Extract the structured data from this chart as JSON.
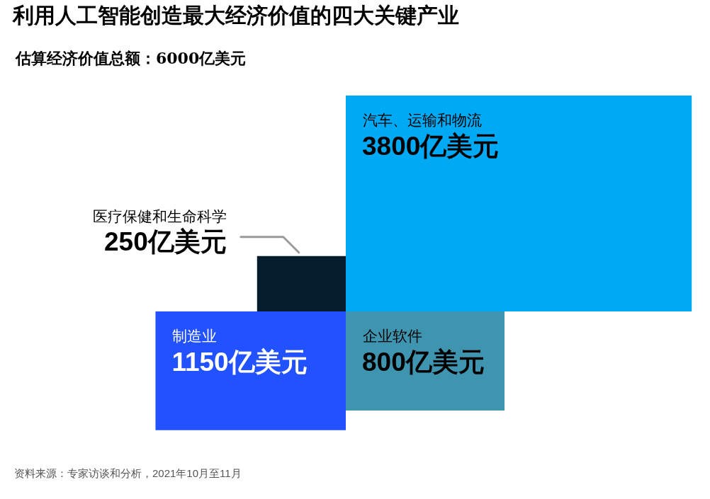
{
  "chart_data": {
    "type": "other",
    "title": "利用人工智能创造最大经济价值的四大关键产业",
    "subtitle": "估算经济价值总额：6000亿美元",
    "categories": [
      "医疗保健和生命科学",
      "汽车、运输和物流",
      "制造业",
      "企业软件"
    ],
    "values": [
      250,
      3800,
      1150,
      800
    ],
    "value_labels": [
      "250亿美元",
      "3800亿美元",
      "1150亿美元",
      "800亿美元"
    ],
    "colors": [
      "#051c2c",
      "#00a9f4",
      "#2251ff",
      "#3f94b0"
    ],
    "annotations": [
      "资料来源：专家访谈和分析，2021年10月至11月"
    ]
  }
}
